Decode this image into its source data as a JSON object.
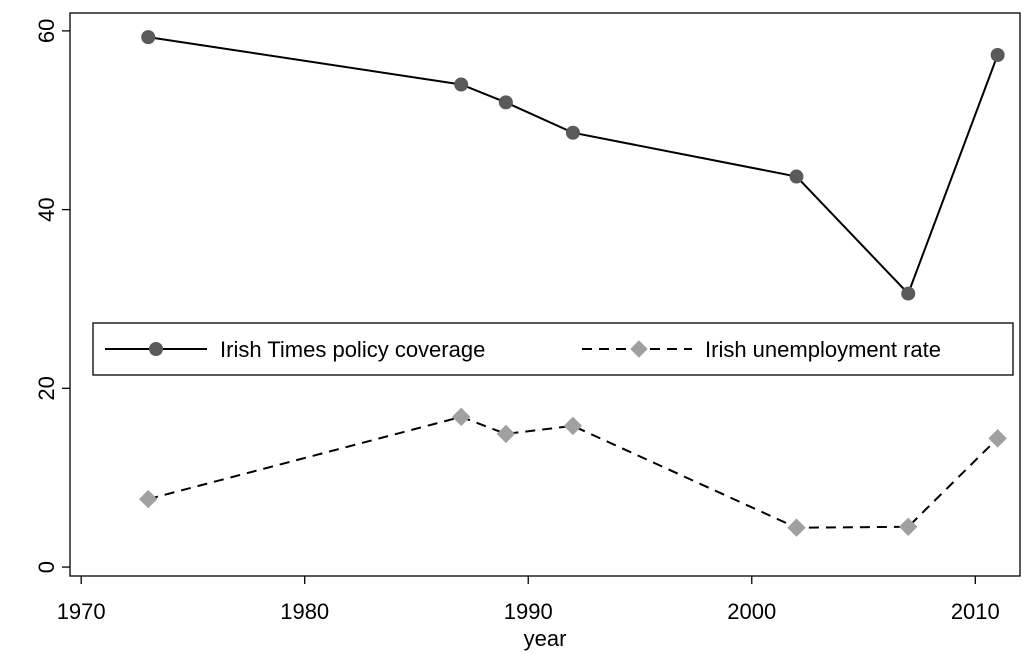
{
  "chart_data": {
    "type": "line",
    "xlabel": "year",
    "ylabel": "",
    "xlim": [
      1969.5,
      2012
    ],
    "ylim": [
      -1,
      62
    ],
    "x_ticks": [
      1970,
      1980,
      1990,
      2000,
      2010
    ],
    "y_ticks": [
      0,
      20,
      40,
      60
    ],
    "grid": false,
    "legend": {
      "placement": "center",
      "columns": 2
    },
    "series": [
      {
        "name": "Irish Times policy coverage",
        "style": "solid",
        "marker": "circle",
        "color": "#5a5a5a",
        "x": [
          1973,
          1987,
          1989,
          1992,
          2002,
          2007,
          2011
        ],
        "y": [
          59.3,
          54.0,
          52.0,
          48.6,
          43.7,
          30.6,
          57.3
        ]
      },
      {
        "name": "Irish unemployment rate",
        "style": "dashed",
        "marker": "diamond",
        "color": "#a0a0a0",
        "x": [
          1973,
          1987,
          1989,
          1992,
          2002,
          2007,
          2011
        ],
        "y": [
          7.6,
          16.8,
          14.9,
          15.8,
          4.4,
          4.5,
          14.4
        ]
      }
    ]
  }
}
